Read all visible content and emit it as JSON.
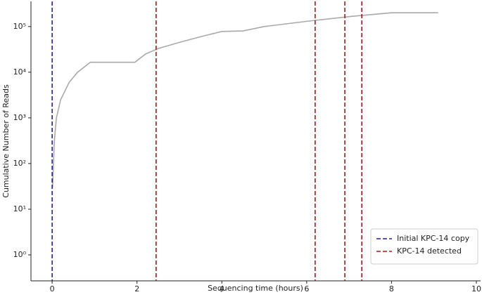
{
  "chart_data": {
    "type": "line",
    "log_y": true,
    "xlabel": "Sequencing time (hours)",
    "ylabel": "Cumulative Number of Reads",
    "x": [
      0.01,
      0.05,
      0.1,
      0.2,
      0.4,
      0.6,
      0.9,
      1.95,
      2.2,
      2.5,
      3,
      3.5,
      4,
      4.5,
      5,
      6,
      7,
      8,
      9.1
    ],
    "series": [
      {
        "color": "#a9a9a9",
        "values": [
          30,
          300,
          1000,
          2500,
          6000,
          10000,
          16500,
          16500,
          25000,
          33000,
          45000,
          60000,
          78000,
          80000,
          100000,
          130000,
          165000,
          200000,
          200000
        ]
      }
    ],
    "vlines": [
      {
        "name": "Initial KPC-14 copy",
        "color": "#1f1f9e",
        "x": [
          0
        ]
      },
      {
        "name": "KPC-14 detected",
        "color": "#a01c1c",
        "x": [
          2.45,
          6.2,
          6.9,
          7.3
        ]
      }
    ],
    "xlim": [
      -0.5,
      10.1
    ],
    "ylim": [
      0.27,
      355000
    ],
    "xticks": [
      0,
      2,
      4,
      6,
      8,
      10
    ],
    "yticks": [
      {
        "value": 1,
        "label": "10⁰"
      },
      {
        "value": 10,
        "label": "10¹"
      },
      {
        "value": 100,
        "label": "10²"
      },
      {
        "value": 1000,
        "label": "10³"
      },
      {
        "value": 10000,
        "label": "10⁴"
      },
      {
        "value": 100000,
        "label": "10⁵"
      }
    ],
    "legend": "lower right"
  }
}
